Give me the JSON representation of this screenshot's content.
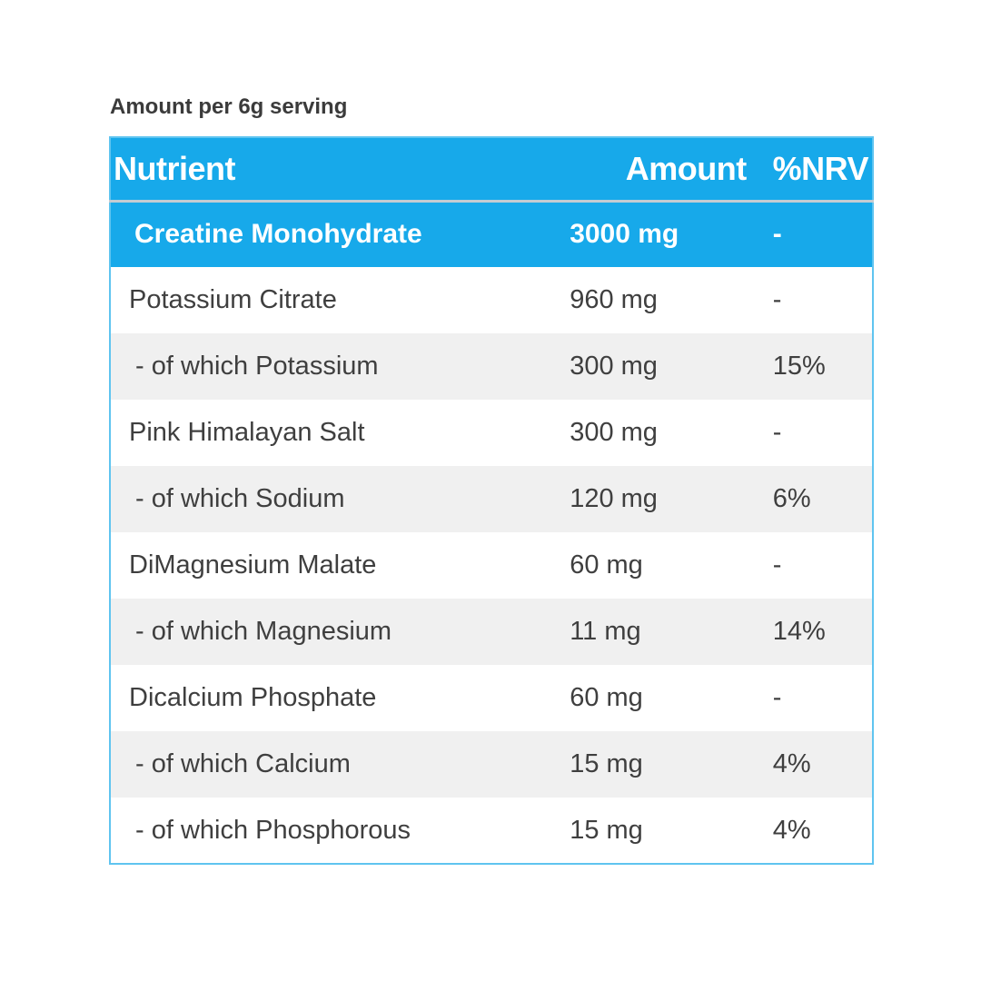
{
  "caption": "Amount per 6g serving",
  "colors": {
    "accent_blue": "#17a9ea",
    "border_blue": "#5fc4f0",
    "row_gray": "#f0f0f0",
    "text_dark": "#3f3f3f",
    "header_text": "#ffffff"
  },
  "chart_data": {
    "type": "table",
    "title": "Amount per 6g serving",
    "columns": [
      "Nutrient",
      "Amount",
      "%NRV"
    ],
    "rows": [
      {
        "nutrient": "Creatine Monohydrate",
        "amount": "3000 mg",
        "nrv": "-",
        "highlighted": true,
        "sub": false
      },
      {
        "nutrient": "Potassium Citrate",
        "amount": "960 mg",
        "nrv": "-",
        "highlighted": false,
        "sub": false
      },
      {
        "nutrient": "- of which Potassium",
        "amount": "300 mg",
        "nrv": "15%",
        "highlighted": false,
        "sub": true
      },
      {
        "nutrient": "Pink Himalayan Salt",
        "amount": "300 mg",
        "nrv": "-",
        "highlighted": false,
        "sub": false
      },
      {
        "nutrient": "- of which Sodium",
        "amount": "120 mg",
        "nrv": "6%",
        "highlighted": false,
        "sub": true
      },
      {
        "nutrient": "DiMagnesium Malate",
        "amount": "60 mg",
        "nrv": "-",
        "highlighted": false,
        "sub": false
      },
      {
        "nutrient": "- of which Magnesium",
        "amount": "11 mg",
        "nrv": "14%",
        "highlighted": false,
        "sub": true
      },
      {
        "nutrient": "Dicalcium Phosphate",
        "amount": "60 mg",
        "nrv": "-",
        "highlighted": false,
        "sub": false
      },
      {
        "nutrient": "- of which Calcium",
        "amount": "15 mg",
        "nrv": "4%",
        "highlighted": false,
        "sub": true
      },
      {
        "nutrient": "- of which Phosphorous",
        "amount": "15 mg",
        "nrv": "4%",
        "highlighted": false,
        "sub": true
      }
    ]
  }
}
